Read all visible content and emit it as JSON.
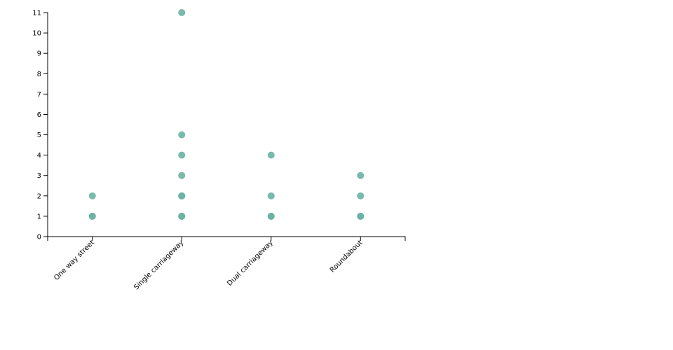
{
  "chart_data": {
    "type": "scatter",
    "categories": [
      "One way street",
      "Single carriageway",
      "Dual carriageway",
      "Roundabout"
    ],
    "x": [
      "One way street",
      "One way street",
      "One way street",
      "Single carriageway",
      "Single carriageway",
      "Single carriageway",
      "Single carriageway",
      "Single carriageway",
      "Single carriageway",
      "Single carriageway",
      "Single carriageway",
      "Dual carriageway",
      "Dual carriageway",
      "Dual carriageway",
      "Dual carriageway",
      "Roundabout",
      "Roundabout",
      "Roundabout",
      "Roundabout"
    ],
    "values": [
      1,
      1,
      2,
      1,
      1,
      2,
      2,
      3,
      4,
      5,
      11,
      1,
      1,
      2,
      4,
      1,
      1,
      2,
      3
    ],
    "color": "#69b3a2",
    "ylim": [
      0,
      11
    ],
    "yticks": [
      0,
      1,
      2,
      3,
      4,
      5,
      6,
      7,
      8,
      9,
      10,
      11
    ]
  }
}
